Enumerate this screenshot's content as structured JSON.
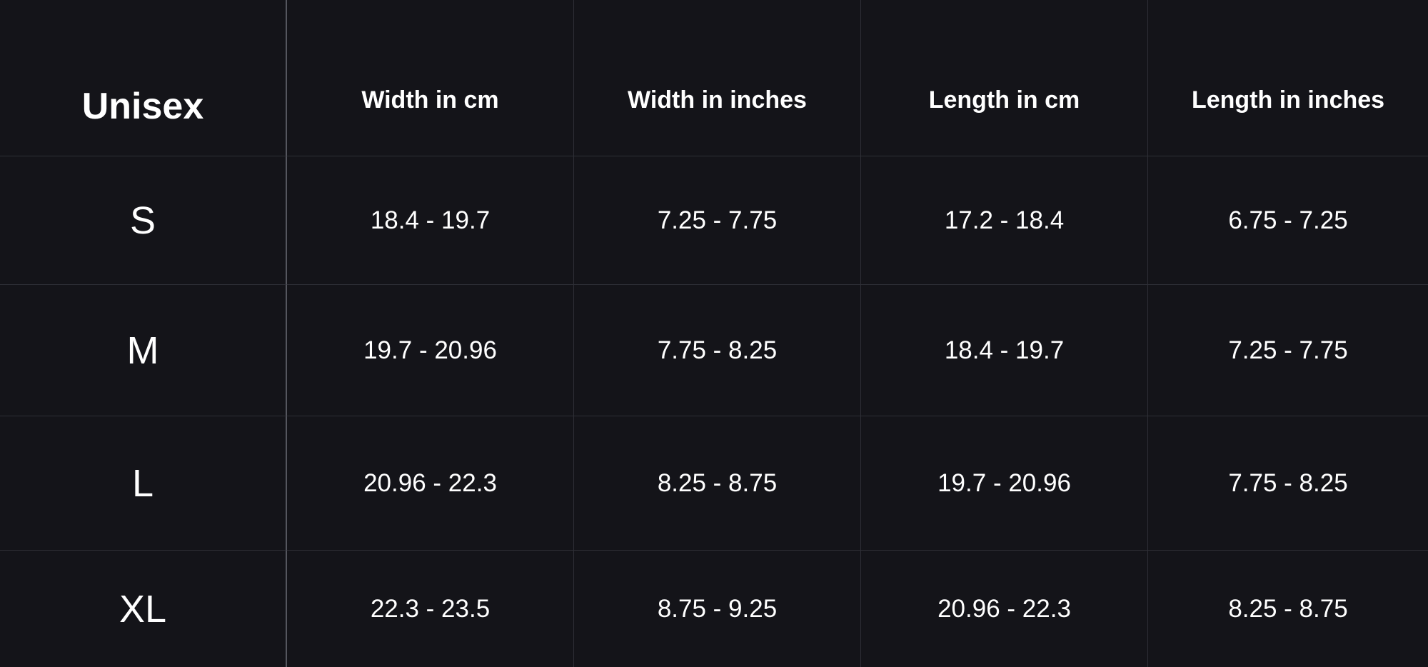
{
  "table": {
    "corner_label": "Unisex",
    "headers": [
      "Width in cm",
      "Width in inches",
      "Length in cm",
      "Length in inches"
    ],
    "rows": [
      {
        "size": "S",
        "values": [
          "18.4 - 19.7",
          "7.25 - 7.75",
          "17.2 - 18.4",
          "6.75 - 7.25"
        ]
      },
      {
        "size": "M",
        "values": [
          "19.7 - 20.96",
          "7.75 - 8.25",
          "18.4 - 19.7",
          "7.25 - 7.75"
        ]
      },
      {
        "size": "L",
        "values": [
          "20.96 - 22.3",
          "8.25 - 8.75",
          "19.7 - 20.96",
          "7.75 - 8.25"
        ]
      },
      {
        "size": "XL",
        "values": [
          "22.3 - 23.5",
          "8.75 - 9.25",
          "20.96 - 22.3",
          "8.25 - 8.75"
        ]
      }
    ]
  },
  "colors": {
    "background": "#141419",
    "text": "#ffffff",
    "grid_line": "#2e2f36",
    "first_column_divider": "#55565e"
  }
}
